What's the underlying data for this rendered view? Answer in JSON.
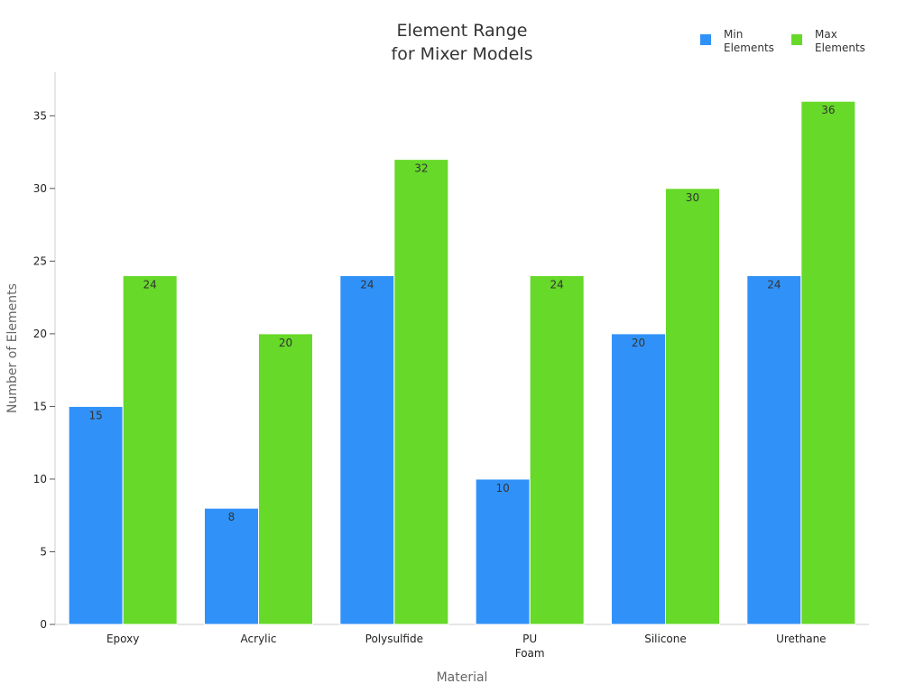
{
  "chart_data": {
    "type": "bar",
    "title": [
      "Element Range",
      "for Mixer Models"
    ],
    "xlabel": "Material",
    "ylabel": "Number of Elements",
    "categories": [
      [
        "Epoxy"
      ],
      [
        "Acrylic"
      ],
      [
        "Polysulfide"
      ],
      [
        "PU",
        "Foam"
      ],
      [
        "Silicone"
      ],
      [
        "Urethane"
      ]
    ],
    "series": [
      {
        "name": [
          "Min",
          "Elements"
        ],
        "color": "#3092f8",
        "values": [
          15,
          8,
          24,
          10,
          20,
          24
        ]
      },
      {
        "name": [
          "Max",
          "Elements"
        ],
        "color": "#66d929",
        "values": [
          24,
          20,
          32,
          24,
          30,
          36
        ]
      }
    ],
    "ylim": [
      0,
      38
    ],
    "yticks": [
      0,
      5,
      10,
      15,
      20,
      25,
      30,
      35
    ],
    "grid": false,
    "legend_position": "top-right"
  }
}
